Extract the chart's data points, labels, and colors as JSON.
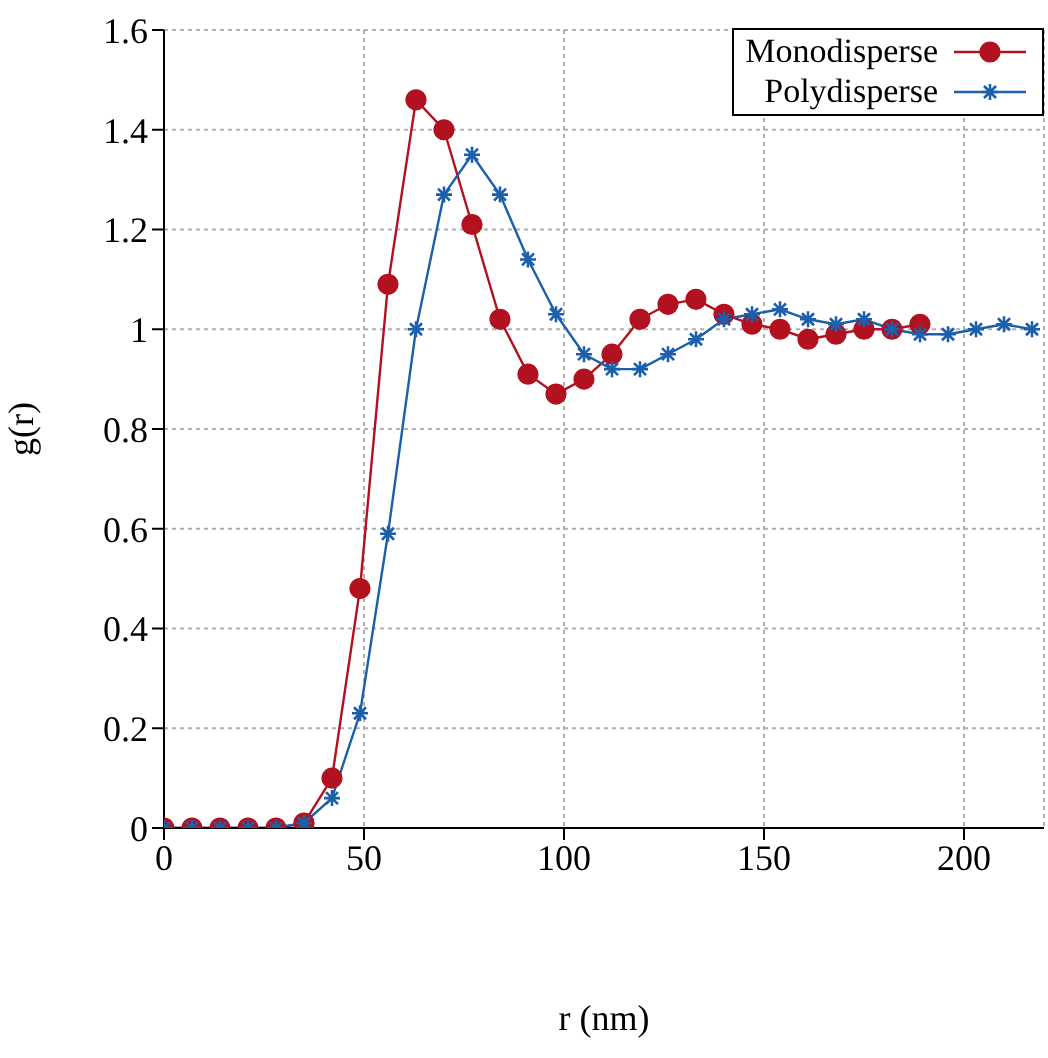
{
  "chart_data": {
    "type": "line",
    "xlabel": "r (nm)",
    "ylabel": "g(r)",
    "xlim": [
      0,
      220
    ],
    "xticks": [
      0,
      50,
      100,
      150,
      200
    ],
    "ylim": [
      0,
      1.6
    ],
    "yticks": [
      0,
      0.2,
      0.4,
      0.6,
      0.8,
      1,
      1.2,
      1.4,
      1.6
    ],
    "grid": true,
    "legend": "top right",
    "line_style": "solid",
    "series": [
      {
        "name": "Monodisperse",
        "color": "#b2111f",
        "marker": "circle",
        "x": [
          0,
          7,
          14,
          21,
          28,
          35,
          42,
          49,
          56,
          63,
          70,
          77,
          84,
          91,
          98,
          105,
          112,
          119,
          126,
          133,
          140,
          147,
          154,
          161,
          168,
          175,
          182,
          189
        ],
        "values": [
          0,
          0,
          0,
          0,
          0,
          0.01,
          0.1,
          0.48,
          1.09,
          1.46,
          1.4,
          1.21,
          1.02,
          0.91,
          0.87,
          0.9,
          0.95,
          1.02,
          1.05,
          1.06,
          1.03,
          1.01,
          1,
          0.98,
          0.99,
          1,
          1,
          1.01
        ]
      },
      {
        "name": "Polydisperse",
        "color": "#1c5fab",
        "marker": "cross",
        "x": [
          0,
          7,
          14,
          21,
          28,
          35,
          42,
          49,
          56,
          63,
          70,
          77,
          84,
          91,
          98,
          105,
          112,
          119,
          126,
          133,
          140,
          147,
          154,
          161,
          168,
          175,
          182,
          189,
          196,
          203,
          210,
          217
        ],
        "values": [
          0,
          0,
          0,
          0,
          0,
          0.01,
          0.06,
          0.23,
          0.59,
          1,
          1.27,
          1.35,
          1.27,
          1.14,
          1.03,
          0.95,
          0.92,
          0.92,
          0.95,
          0.98,
          1.02,
          1.03,
          1.04,
          1.02,
          1.01,
          1.02,
          1,
          0.99,
          0.99,
          1,
          1.01,
          1
        ]
      }
    ]
  }
}
